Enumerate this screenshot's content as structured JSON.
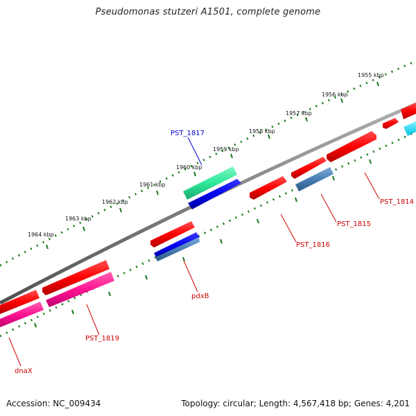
{
  "title": "Pseudomonas stutzeri A1501, complete genome",
  "footer": {
    "accession": "Accession: NC_009434",
    "summary": "Topology: circular; Length: 4,567,418 bp; Genes: 4,201"
  },
  "ticks": [
    {
      "label": "1955 kbp"
    },
    {
      "label": "1956 kbp"
    },
    {
      "label": "1957 kbp"
    },
    {
      "label": "1958 kbp"
    },
    {
      "label": "1959 kbp"
    },
    {
      "label": "1960 kbp"
    },
    {
      "label": "1961 kbp"
    },
    {
      "label": "1962 kbp"
    },
    {
      "label": "1963 kbp"
    },
    {
      "label": "1964 kbp"
    }
  ],
  "genes": {
    "pst1817": {
      "label": "PST_1817",
      "color": "#0000cc"
    },
    "pst1814": {
      "label": "PST_1814",
      "color": "#cc0000"
    },
    "pst1815": {
      "label": "PST_1815",
      "color": "#cc0000"
    },
    "pst1816": {
      "label": "PST_1816",
      "color": "#cc0000"
    },
    "pdxb": {
      "label": "pdxB",
      "color": "#cc0000"
    },
    "pst1819": {
      "label": "PST_1819",
      "color": "#cc0000"
    },
    "dnax": {
      "label": "dnaX",
      "color": "#cc0000"
    }
  },
  "colors": {
    "cds_forward": "#ff0000",
    "cds_reverse": "#ff0000",
    "gene_blue": "#0000ee",
    "gene_steel": "#4a7fb5",
    "gene_pink": "#ff1493",
    "gene_green": "#2ee89a",
    "gene_cyan": "#00e5ff",
    "backbone": "#7a7a7a",
    "tick_green": "#1a7a1a"
  }
}
